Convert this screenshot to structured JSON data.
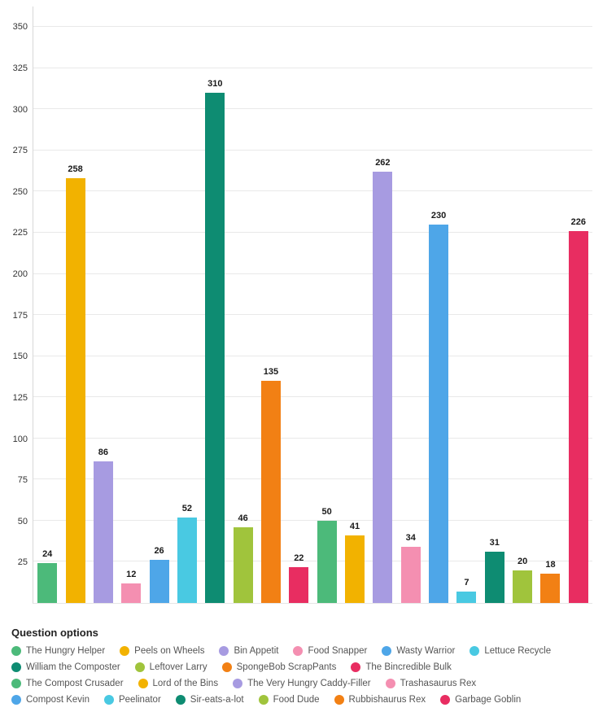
{
  "chart_data": {
    "type": "bar",
    "title": "",
    "xlabel": "",
    "ylabel": "",
    "categories": [
      "The Hungry Helper",
      "Peels on Wheels",
      "Bin Appetit",
      "Food Snapper",
      "Wasty Warrior",
      "Lettuce Recycle",
      "William the Composter",
      "Leftover Larry",
      "SpongeBob ScrapPants",
      "The Bincredible Bulk",
      "The Compost Crusader",
      "Lord of the Bins",
      "The Very Hungry Caddy-Filler",
      "Trashasaurus Rex",
      "Compost Kevin",
      "Peelinator",
      "Sir-eats-a-lot",
      "Food Dude",
      "Rubbishaurus Rex",
      "Garbage Goblin"
    ],
    "values": [
      24,
      258,
      86,
      12,
      26,
      52,
      310,
      46,
      135,
      22,
      50,
      41,
      262,
      34,
      230,
      7,
      31,
      20,
      18,
      226
    ],
    "palette": [
      "#4CBA7A",
      "#F2B200",
      "#A79BE1",
      "#F48FB1",
      "#4EA6E8",
      "#49C9E2",
      "#0E8C72",
      "#A0C43C",
      "#F28014",
      "#E82D61"
    ],
    "value_labels_visible": true,
    "grid": true,
    "ylim": [
      0,
      362.5
    ],
    "yticks": [
      25,
      50,
      75,
      100,
      125,
      150,
      175,
      200,
      225,
      250,
      275,
      300,
      325,
      350
    ],
    "legend": {
      "title": "Question options",
      "position": "bottom",
      "rows": [
        [
          0,
          1,
          2,
          3,
          4,
          5
        ],
        [
          6,
          7,
          8,
          9
        ],
        [
          10,
          11,
          12,
          13
        ],
        [
          14,
          15,
          16,
          17,
          18,
          19
        ]
      ]
    },
    "colors": {
      "gridline": "#e9e9e9",
      "axis_line": "#d8d8d8",
      "tick_text": "#333333",
      "value_label_text": "#1a1a1a",
      "legend_text": "#555555",
      "background": "#ffffff"
    }
  }
}
